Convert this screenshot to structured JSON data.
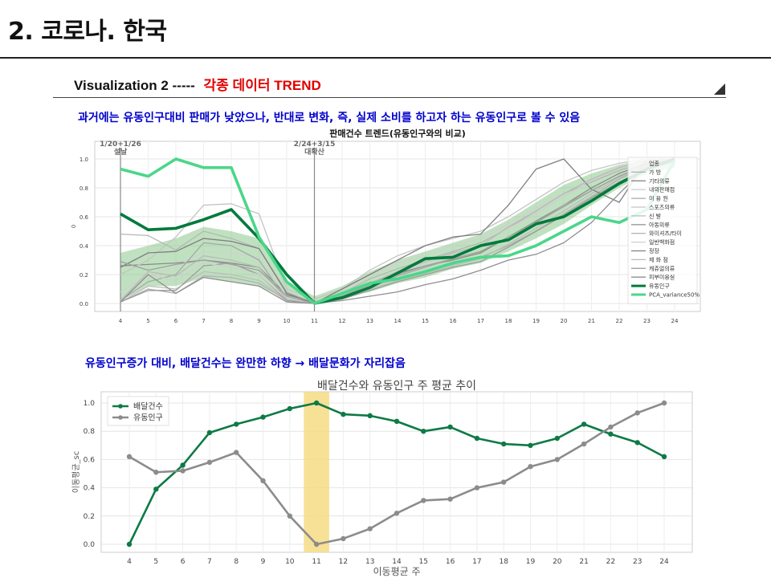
{
  "slide": {
    "title": "2. 코로나. 한국",
    "subhead_prefix": "Visualization  2 -----",
    "subhead_accent": "각종 데이터 TREND",
    "caption1": "과거에는 유동인구대비  판매가 낮았으나, 반대로 변화, 즉, 실제 소비를 하고자 하는 유동인구로  볼 수 있음",
    "caption2": "유동인구증가 대비, 배달건수는  완만한 하향 → 배달문화가 자리잡음"
  },
  "chart_data": [
    {
      "type": "line",
      "title": "판매건수 트렌드(유동인구와의 비교)",
      "xlabel": "",
      "ylabel": "0",
      "x": [
        4,
        5,
        6,
        7,
        8,
        9,
        10,
        11,
        12,
        13,
        14,
        15,
        16,
        17,
        18,
        19,
        20,
        21,
        22,
        23,
        24
      ],
      "xlim": [
        4,
        24
      ],
      "ylim": [
        0,
        1
      ],
      "yticks": [
        "0.0",
        "0.2",
        "0.4",
        "0.6",
        "0.8",
        "1.0"
      ],
      "grid": true,
      "legend_position": "right",
      "legend_title": "업종",
      "annotations": [
        {
          "x": 4,
          "label": "1/20+1/26",
          "sublabel": "설날"
        },
        {
          "x": 11,
          "label": "2/24+3/15",
          "sublabel": "대확산"
        }
      ],
      "band": {
        "color": "#8cc98c",
        "lower": [
          0.02,
          0.12,
          0.12,
          0.18,
          0.15,
          0.12,
          0.03,
          0.01,
          0.04,
          0.08,
          0.14,
          0.18,
          0.24,
          0.28,
          0.36,
          0.45,
          0.55,
          0.68,
          0.8,
          0.9,
          0.94
        ],
        "upper": [
          0.35,
          0.4,
          0.45,
          0.53,
          0.5,
          0.45,
          0.16,
          0.05,
          0.12,
          0.22,
          0.3,
          0.36,
          0.42,
          0.48,
          0.58,
          0.7,
          0.82,
          0.9,
          0.96,
          1.0,
          0.99
        ]
      },
      "series": [
        {
          "name": "가  방",
          "color": "#b0b0b0",
          "values": [
            0.01,
            0.1,
            0.07,
            0.19,
            0.18,
            0.14,
            0.02,
            0.0,
            0.04,
            0.12,
            0.17,
            0.22,
            0.27,
            0.32,
            0.4,
            0.5,
            0.62,
            0.74,
            0.86,
            0.95,
            0.98
          ]
        },
        {
          "name": "기타의류",
          "color": "#8a8a8a",
          "values": [
            0.26,
            0.27,
            0.28,
            0.3,
            0.28,
            0.25,
            0.06,
            0.01,
            0.06,
            0.14,
            0.21,
            0.26,
            0.3,
            0.35,
            0.46,
            0.57,
            0.68,
            0.8,
            0.9,
            0.97,
            1.0
          ]
        },
        {
          "name": "내의판매점",
          "color": "#d0d0d0",
          "values": [
            0.08,
            0.2,
            0.25,
            0.36,
            0.35,
            0.32,
            0.05,
            0.0,
            0.08,
            0.18,
            0.28,
            0.33,
            0.4,
            0.45,
            0.55,
            0.66,
            0.76,
            0.85,
            0.93,
            0.99,
            1.0
          ]
        },
        {
          "name": "미 용 원",
          "color": "#a8a8a8",
          "values": [
            0.02,
            0.15,
            0.2,
            0.42,
            0.4,
            0.3,
            0.02,
            0.0,
            0.05,
            0.11,
            0.19,
            0.25,
            0.31,
            0.36,
            0.46,
            0.56,
            0.68,
            0.78,
            0.88,
            0.96,
            1.0
          ]
        },
        {
          "name": "스포츠의류",
          "color": "#c4c4c4",
          "values": [
            0.2,
            0.3,
            0.46,
            0.68,
            0.69,
            0.62,
            0.1,
            0.03,
            0.1,
            0.23,
            0.33,
            0.4,
            0.45,
            0.5,
            0.6,
            0.72,
            0.84,
            0.92,
            0.97,
            1.0,
            1.0
          ]
        },
        {
          "name": "신  발",
          "color": "#bdbdbd",
          "values": [
            0.01,
            0.12,
            0.1,
            0.22,
            0.2,
            0.16,
            0.02,
            0.0,
            0.04,
            0.1,
            0.16,
            0.21,
            0.26,
            0.31,
            0.41,
            0.52,
            0.64,
            0.76,
            0.87,
            0.95,
            0.99
          ]
        },
        {
          "name": "아동의류",
          "color": "#9a9a9a",
          "values": [
            0.01,
            0.09,
            0.09,
            0.26,
            0.28,
            0.2,
            0.02,
            0.0,
            0.03,
            0.09,
            0.15,
            0.2,
            0.25,
            0.29,
            0.39,
            0.5,
            0.61,
            0.73,
            0.84,
            0.93,
            0.98
          ]
        },
        {
          "name": "와이셔츠/타이",
          "color": "#b6b6b6",
          "values": [
            0.48,
            0.47,
            0.37,
            0.5,
            0.45,
            0.38,
            0.08,
            0.0,
            0.07,
            0.17,
            0.24,
            0.3,
            0.36,
            0.42,
            0.52,
            0.64,
            0.76,
            0.84,
            0.92,
            0.98,
            1.0
          ]
        },
        {
          "name": "일반백화점",
          "color": "#cfcfcf",
          "values": [
            0.02,
            0.2,
            0.16,
            0.28,
            0.25,
            0.2,
            0.03,
            0.0,
            0.06,
            0.14,
            0.22,
            0.28,
            0.34,
            0.4,
            0.52,
            0.62,
            0.74,
            0.85,
            0.93,
            0.98,
            1.0
          ]
        },
        {
          "name": "정장",
          "color": "#7f7f7f",
          "values": [
            0.25,
            0.35,
            0.36,
            0.45,
            0.43,
            0.38,
            0.07,
            0.0,
            0.1,
            0.2,
            0.3,
            0.4,
            0.46,
            0.48,
            0.68,
            0.93,
            1.0,
            0.79,
            0.7,
            0.99,
            1.0
          ]
        },
        {
          "name": "제 화 점",
          "color": "#bababa",
          "values": [
            0.02,
            0.22,
            0.19,
            0.33,
            0.3,
            0.25,
            0.03,
            0.0,
            0.06,
            0.14,
            0.22,
            0.29,
            0.35,
            0.4,
            0.53,
            0.64,
            0.76,
            0.86,
            0.94,
            0.99,
            1.0
          ]
        },
        {
          "name": "캐쥬얼의류",
          "color": "#a0a0a0",
          "values": [
            0.29,
            0.23,
            0.27,
            0.3,
            0.27,
            0.23,
            0.05,
            0.0,
            0.05,
            0.13,
            0.2,
            0.26,
            0.31,
            0.36,
            0.46,
            0.56,
            0.67,
            0.78,
            0.88,
            0.96,
            1.0
          ]
        },
        {
          "name": "피부미용실",
          "color": "#8f8f8f",
          "values": [
            0.01,
            0.2,
            0.07,
            0.18,
            0.15,
            0.12,
            0.01,
            0.0,
            0.02,
            0.05,
            0.08,
            0.13,
            0.17,
            0.23,
            0.3,
            0.34,
            0.42,
            0.56,
            0.76,
            0.95,
            0.99
          ]
        },
        {
          "name": "유동인구",
          "color": "#007a3d",
          "values": [
            0.62,
            0.51,
            0.52,
            0.58,
            0.65,
            0.45,
            0.2,
            0.0,
            0.04,
            0.11,
            0.21,
            0.31,
            0.32,
            0.4,
            0.44,
            0.55,
            0.6,
            0.71,
            0.83,
            0.93,
            1.0
          ],
          "width": 3.6
        },
        {
          "name": "PCA_variance50%",
          "color": "#4cd68a",
          "values": [
            0.93,
            0.88,
            1.0,
            0.94,
            0.94,
            0.46,
            0.15,
            0.0,
            0.07,
            0.14,
            0.17,
            0.22,
            0.28,
            0.32,
            0.33,
            0.4,
            0.5,
            0.6,
            0.56,
            0.65,
            0.99
          ],
          "width": 3.6
        }
      ]
    },
    {
      "type": "line",
      "title": "배달건수와 유동인구 주 평균 추이",
      "xlabel": "이동평균 주",
      "ylabel": "이동평균_sc",
      "x": [
        4,
        5,
        6,
        7,
        8,
        9,
        10,
        11,
        12,
        13,
        14,
        15,
        16,
        17,
        18,
        19,
        20,
        21,
        22,
        23,
        24
      ],
      "xlim": [
        4,
        24
      ],
      "ylim": [
        0,
        1
      ],
      "yticks": [
        "0.0",
        "0.2",
        "0.4",
        "0.6",
        "0.8",
        "1.0"
      ],
      "grid": true,
      "legend_position": "top-left",
      "highlight_x": 11,
      "highlight_color": "#f5dc84",
      "series": [
        {
          "name": "배달건수",
          "color": "#0e7a46",
          "values": [
            0.0,
            0.39,
            0.56,
            0.79,
            0.85,
            0.9,
            0.96,
            1.0,
            0.92,
            0.91,
            0.87,
            0.8,
            0.83,
            0.75,
            0.71,
            0.7,
            0.75,
            0.85,
            0.78,
            0.72,
            0.62
          ]
        },
        {
          "name": "유동인구",
          "color": "#8c8c8c",
          "values": [
            0.62,
            0.51,
            0.52,
            0.58,
            0.65,
            0.45,
            0.2,
            0.0,
            0.04,
            0.11,
            0.22,
            0.31,
            0.32,
            0.4,
            0.44,
            0.55,
            0.6,
            0.71,
            0.83,
            0.93,
            1.0
          ]
        }
      ]
    }
  ]
}
